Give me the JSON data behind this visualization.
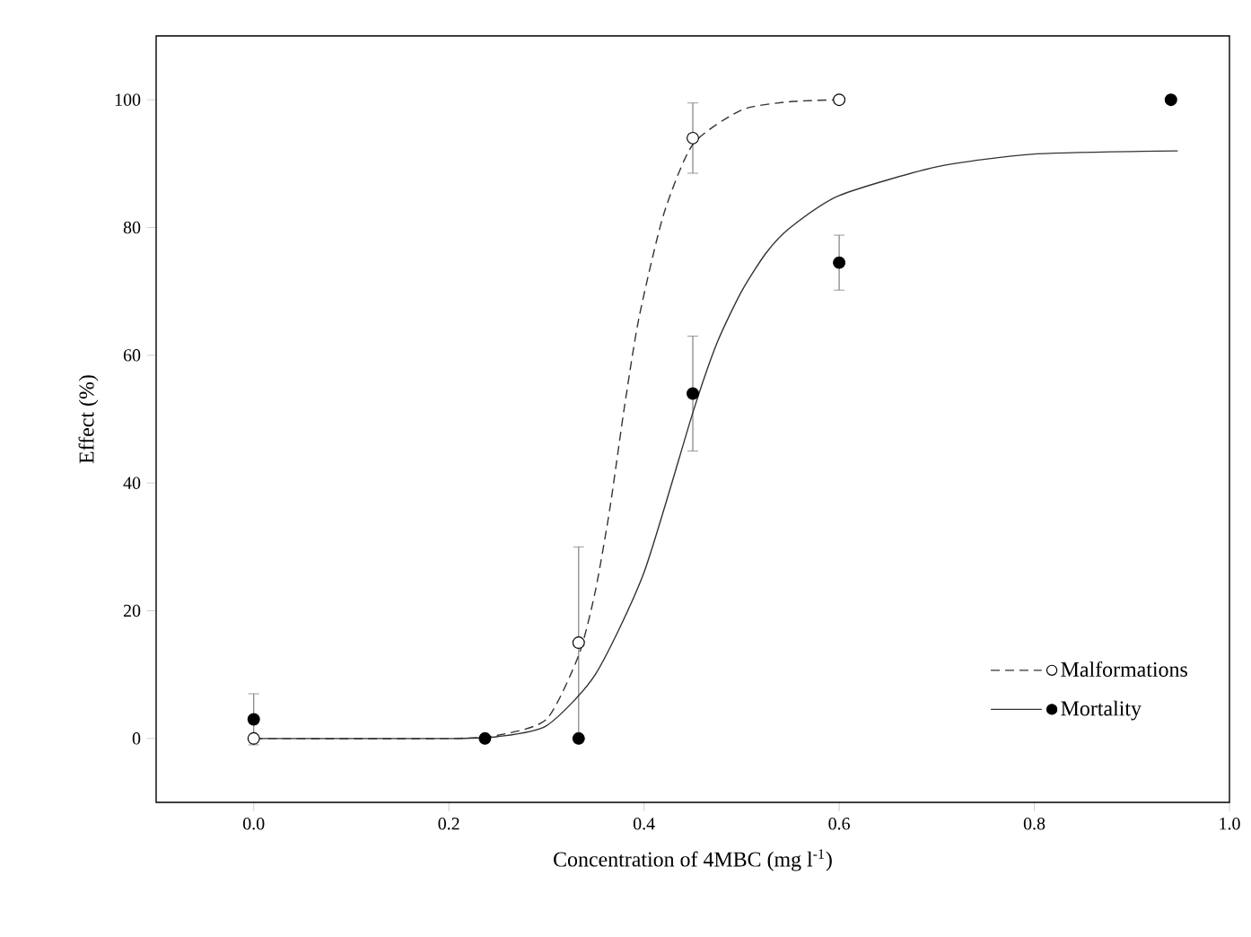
{
  "chart_data": {
    "type": "scatter",
    "xlabel": "Concentration of 4MBC (mg l$^{-1}$)",
    "ylabel": "Effect (%)",
    "xlim": [
      -0.1,
      1.0
    ],
    "ylim": [
      -10,
      110
    ],
    "xticks": [
      {
        "value": 0,
        "label": "0.0"
      },
      {
        "value": 0.2,
        "label": "0.2"
      },
      {
        "value": 0.4,
        "label": "0.4"
      },
      {
        "value": 0.6,
        "label": "0.6"
      },
      {
        "value": 0.8,
        "label": "0.8"
      },
      {
        "value": 1.0,
        "label": "1.0"
      }
    ],
    "yticks": [
      0,
      20,
      40,
      60,
      80,
      100
    ],
    "grid": false,
    "legend": "bottom right",
    "series": [
      {
        "name": "Malformations",
        "marker": "circle",
        "color": "#ffffff",
        "x": [
          0,
          0.333,
          0.45,
          0.6
        ],
        "values": [
          0,
          15,
          94,
          100
        ],
        "errors": [
          null,
          15,
          5.5,
          null
        ]
      },
      {
        "type": "line",
        "line_style": "dashed",
        "color": "#333333",
        "x": [
          0,
          0.2,
          0.25,
          0.3,
          0.333,
          0.35,
          0.365,
          0.38,
          0.395,
          0.42,
          0.45,
          0.5,
          0.55,
          0.6
        ],
        "values": [
          0,
          0,
          0.5,
          3,
          13,
          23,
          36,
          52,
          66,
          82,
          93,
          98.4,
          99.7,
          100
        ]
      },
      {
        "name": "Mortality",
        "marker": "circle",
        "color": "#000000",
        "x": [
          0,
          0.237,
          0.333,
          0.45,
          0.6,
          0.94
        ],
        "values": [
          3,
          0,
          0,
          54,
          74.5,
          100
        ],
        "errors": [
          4,
          null,
          null,
          9,
          4.3,
          null
        ]
      },
      {
        "type": "line",
        "line_style": "solid",
        "color": "#333333",
        "x": [
          0,
          0.2,
          0.25,
          0.3,
          0.35,
          0.4,
          0.45,
          0.475,
          0.5,
          0.525,
          0.55,
          0.6,
          0.7,
          0.8,
          0.947
        ],
        "values": [
          0,
          0,
          0.3,
          2,
          10,
          26,
          51,
          62,
          70,
          76,
          80,
          85,
          89.5,
          91.5,
          92
        ]
      }
    ]
  }
}
